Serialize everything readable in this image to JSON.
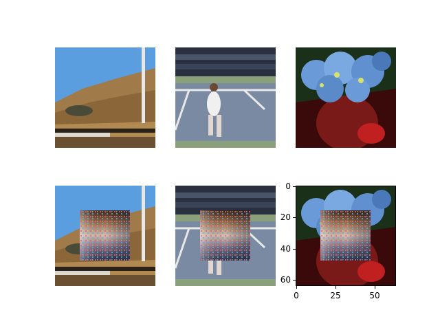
{
  "figure": {
    "panels": [
      {
        "id": "hillside-original",
        "patched": false
      },
      {
        "id": "tennis-original",
        "patched": false
      },
      {
        "id": "flowers-original",
        "patched": false
      },
      {
        "id": "hillside-patched",
        "patched": true
      },
      {
        "id": "tennis-patched",
        "patched": true
      },
      {
        "id": "flowers-patched",
        "patched": true
      }
    ],
    "axes": {
      "y_ticks": [
        "0",
        "20",
        "40",
        "60"
      ],
      "x_ticks": [
        "0",
        "25",
        "50"
      ]
    }
  }
}
